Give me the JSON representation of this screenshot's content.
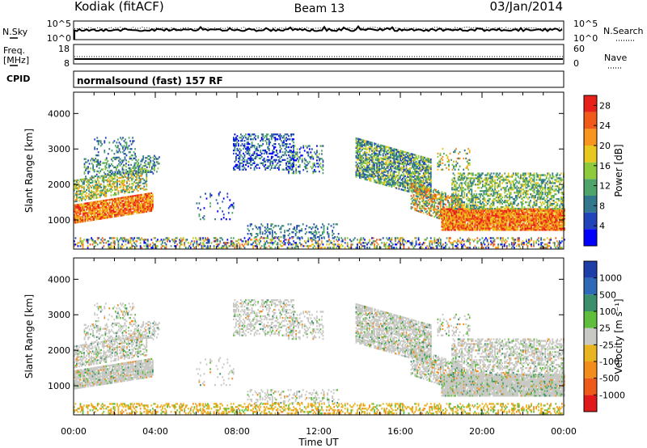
{
  "header": {
    "station": "Kodiak (fitACF)",
    "beam": "Beam 13",
    "date": "03/Jan/2014"
  },
  "strips": {
    "nsky_label": "N.Sky",
    "nsky_ticks": [
      "10^5",
      "10^0"
    ],
    "nsearch_label": "N.Search",
    "freq_label_1": "Freq.",
    "freq_label_2": "[MHz]",
    "freq_ticks": [
      "18",
      "8"
    ],
    "nave_label": "Nave",
    "nave_ticks": [
      "60",
      "0"
    ],
    "cpid_label": "CPID",
    "cpid_text": "normalsound (fast) 157 RF"
  },
  "chart_data": [
    {
      "type": "heatmap",
      "ylabel": "Slant Range [km]",
      "xlabel": "",
      "yticks": [
        1000,
        2000,
        3000,
        4000
      ],
      "ylim": [
        180,
        4600
      ],
      "x_tick_labels": [
        "00:00",
        "04:00",
        "08:00",
        "12:00",
        "16:00",
        "20:00",
        "00:00"
      ],
      "xlim_hours": [
        0,
        24
      ],
      "colorbar": {
        "label": "Power [dB]",
        "ticks": [
          4,
          8,
          12,
          16,
          20,
          24,
          28
        ],
        "range": [
          0,
          30
        ],
        "colors": [
          "#0000ff",
          "#2244bb",
          "#33778f",
          "#4fa46a",
          "#8ecb3c",
          "#e8c81e",
          "#f7951e",
          "#f25a1a",
          "#e8201a"
        ]
      }
    },
    {
      "type": "heatmap",
      "ylabel": "Slant Range [km]",
      "xlabel": "Time UT",
      "yticks": [
        1000,
        2000,
        3000,
        4000
      ],
      "ylim": [
        180,
        4600
      ],
      "x_tick_labels": [
        "00:00",
        "04:00",
        "08:00",
        "12:00",
        "16:00",
        "20:00",
        "00:00"
      ],
      "xlim_hours": [
        0,
        24
      ],
      "colorbar": {
        "label": "Velocity [m s⁻¹]",
        "ticks": [
          "1000",
          "500",
          "100",
          "25",
          "-25",
          "-100",
          "-500",
          "-1000"
        ],
        "colors": [
          "#1e3ea8",
          "#2f6ab8",
          "#3b8f6a",
          "#5fbf3c",
          "#c8c8c4",
          "#e8b420",
          "#f28c1a",
          "#ee5a1a",
          "#e01a1a"
        ]
      }
    }
  ]
}
